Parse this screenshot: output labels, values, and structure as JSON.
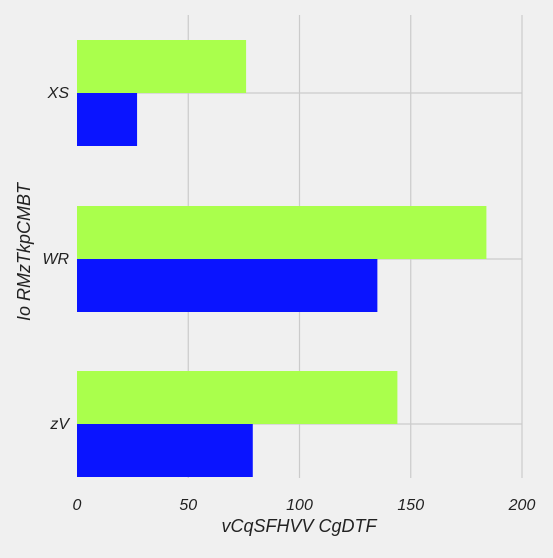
{
  "chart_data": {
    "type": "bar",
    "orientation": "horizontal",
    "title": "",
    "xlabel": "vCqSFHVV CgDTF",
    "ylabel": "Io RMzTkpCMBT",
    "categories": [
      "XS",
      "WR",
      "zV"
    ],
    "series": [
      {
        "values": [
          76,
          184,
          144
        ],
        "color": "#aaff4c"
      },
      {
        "values": [
          27,
          135,
          79
        ],
        "color": "#0a14ff"
      }
    ],
    "xlim": [
      0,
      200
    ],
    "xticks": [
      0,
      50,
      100,
      150,
      200
    ],
    "grid": true,
    "legend": "none"
  }
}
